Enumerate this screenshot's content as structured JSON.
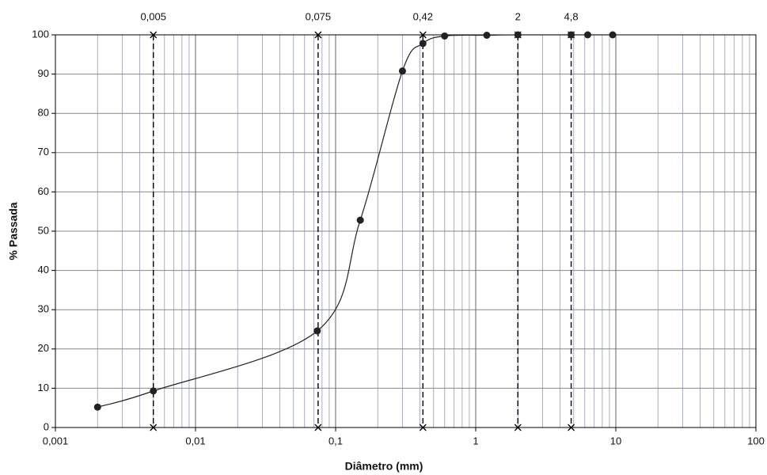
{
  "chart_data": {
    "type": "line",
    "x_label": "Diâmetro (mm)",
    "y_label": "% Passada",
    "x_log": true,
    "grid": true,
    "x": [
      0.002,
      0.005,
      0.074,
      0.15,
      0.3,
      0.42,
      0.6,
      1.2,
      2,
      4.8,
      6.3,
      9.5
    ],
    "series": [
      {
        "color": "#222222",
        "values": [
          5.2,
          9.3,
          24.6,
          52.8,
          90.8,
          97.8,
          99.7,
          99.9,
          100,
          100,
          100,
          100
        ]
      }
    ],
    "xlim": [
      0.001,
      100
    ],
    "xticks": [
      {
        "value": 0.001,
        "label": "0,001"
      },
      {
        "value": 0.01,
        "label": "0,01"
      },
      {
        "value": 0.1,
        "label": "0,1"
      },
      1,
      10,
      100
    ],
    "xminor_ticks": [
      0.002,
      0.003,
      0.004,
      0.005,
      0.006,
      0.007,
      0.008,
      0.009,
      0.02,
      0.03,
      0.04,
      0.05,
      0.06,
      0.07,
      0.08,
      0.09,
      0.2,
      0.3,
      0.4,
      0.5,
      0.6,
      0.7,
      0.8,
      0.9,
      2,
      3,
      4,
      5,
      6,
      7,
      8,
      9,
      20,
      30,
      40,
      50,
      60,
      70,
      80,
      90
    ],
    "ylim": [
      0,
      100
    ],
    "yticks": [
      0,
      10,
      20,
      30,
      40,
      50,
      60,
      70,
      80,
      90,
      100
    ],
    "reference_lines": [
      {
        "value": 0.005,
        "label": "0,005"
      },
      {
        "value": 0.075,
        "label": "0,075"
      },
      {
        "value": 0.42,
        "label": "0,42"
      },
      2,
      {
        "value": 4.8,
        "label": "4,8"
      }
    ]
  }
}
